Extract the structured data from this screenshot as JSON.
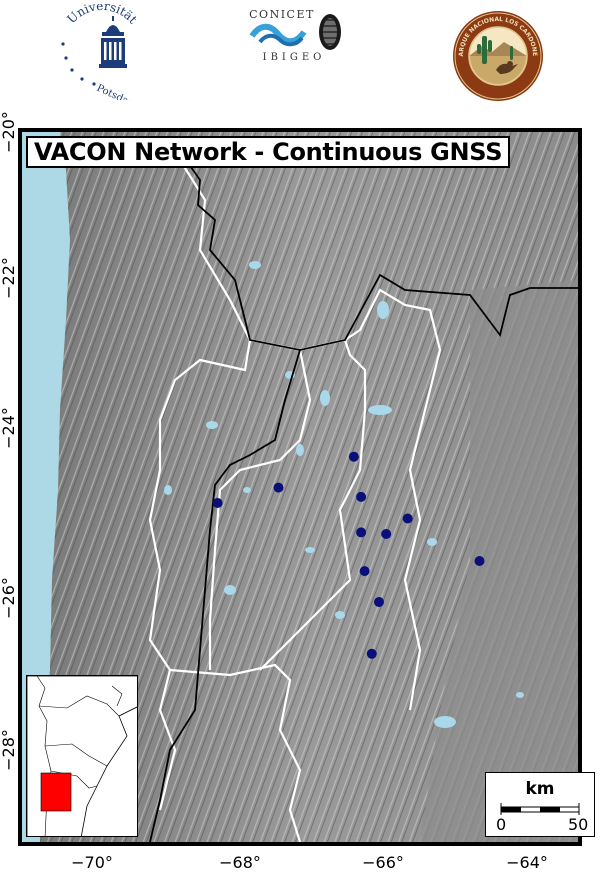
{
  "logos": {
    "potsdam": {
      "text_top": "Universität",
      "text_bottom": "Potsdam"
    },
    "conicet": {
      "top_text": "CONICET",
      "bottom_text": "IBIGEO"
    },
    "park": {
      "ring_text": "PARQUE NACIONAL LOS CARDONES"
    }
  },
  "map": {
    "title": "VACON Network - Continuous GNSS",
    "x_ticks": [
      "−70°",
      "−68°",
      "−66°",
      "−64°"
    ],
    "y_ticks": [
      "−20°",
      "−22°",
      "−24°",
      "−26°",
      "−28°"
    ],
    "scale_bar": {
      "unit": "km",
      "start": "0",
      "end": "50"
    },
    "colors": {
      "ocean": "#add8e6",
      "lakes": "#a8d8ea",
      "stations": "#0b0f7a",
      "relief": "#8a8a8a",
      "inset_region": "#ff0000"
    },
    "stations": [
      {
        "lon": -66.35,
        "lat": -24.2
      },
      {
        "lon": -67.4,
        "lat": -24.6
      },
      {
        "lon": -68.25,
        "lat": -24.8
      },
      {
        "lon": -66.25,
        "lat": -24.72
      },
      {
        "lon": -66.25,
        "lat": -25.18
      },
      {
        "lon": -65.9,
        "lat": -25.2
      },
      {
        "lon": -65.6,
        "lat": -25.0
      },
      {
        "lon": -64.6,
        "lat": -25.55
      },
      {
        "lon": -66.2,
        "lat": -25.68
      },
      {
        "lon": -66.0,
        "lat": -26.08
      },
      {
        "lon": -66.1,
        "lat": -26.75
      }
    ]
  }
}
